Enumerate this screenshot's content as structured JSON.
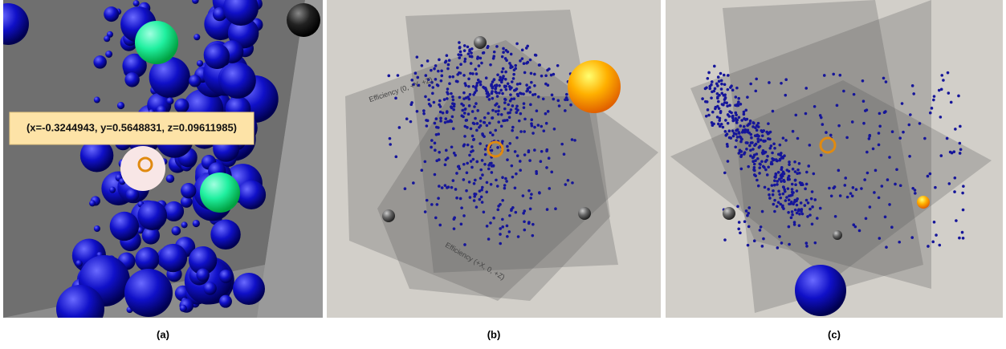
{
  "panels": [
    {
      "caption": "(a)",
      "tooltip": "(x=-0.3244943, y=0.5648831, z=0.09611985)"
    },
    {
      "caption": "(b)",
      "plane_labels": [
        "Efficiency (0, +Y, +Z)",
        "Efficiency (+X, 0, +Z)"
      ]
    },
    {
      "caption": "(c)"
    }
  ]
}
